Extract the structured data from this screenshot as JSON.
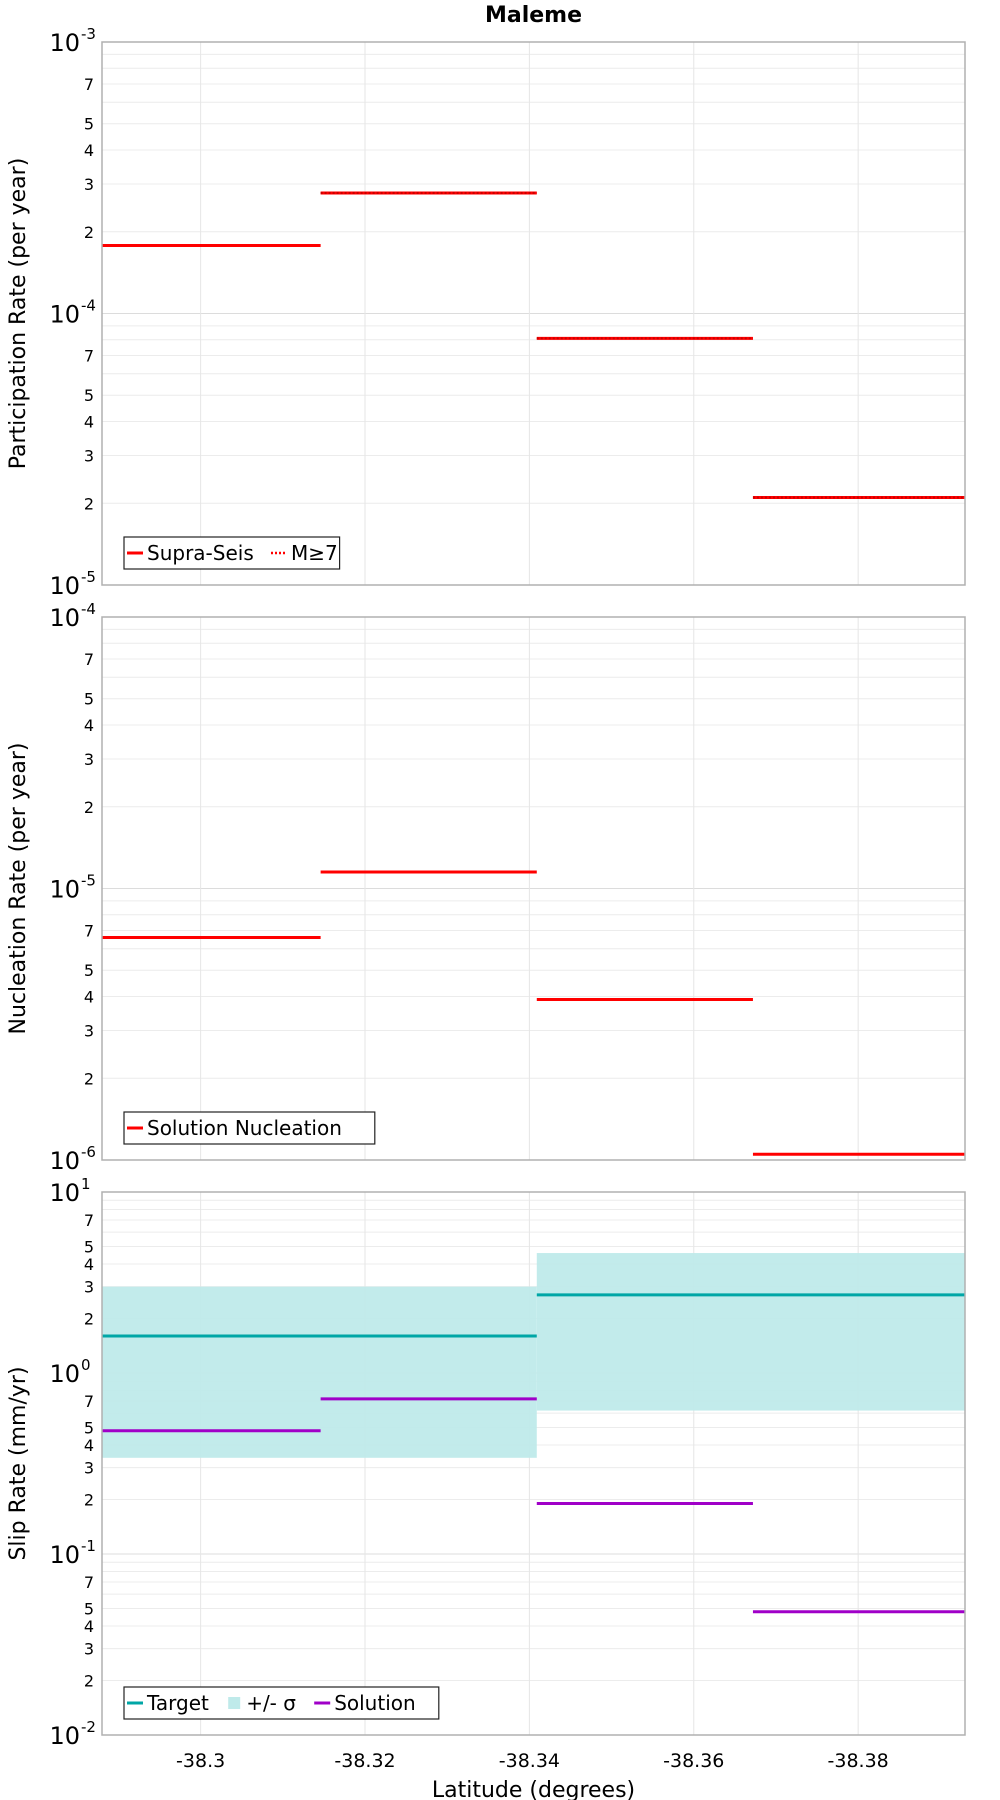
{
  "chart_data": [
    {
      "type": "line",
      "title": "Maleme",
      "xlabel": "",
      "ylabel": "Participation Rate (per year)",
      "x_scale": "linear",
      "x_reversed": true,
      "xlim": [
        -38.288,
        -38.393
      ],
      "y_scale": "log",
      "ylim": [
        1e-05,
        0.001
      ],
      "grid": true,
      "legend_position": "bottom-left",
      "legend": [
        {
          "label": "Supra-Seis",
          "style": "solid",
          "color": "#ff0000"
        },
        {
          "label": "M≥7",
          "style": "dotted",
          "color": "#ff0000"
        }
      ],
      "series": [
        {
          "name": "Supra-Seis",
          "color": "#ff0000",
          "style": "solid",
          "width": 3,
          "segments": [
            {
              "x": [
                -38.288,
                -38.3146
              ],
              "y": 0.000178
            },
            {
              "x": [
                -38.3146,
                -38.3409
              ],
              "y": 0.000278
            },
            {
              "x": [
                -38.3409,
                -38.3672
              ],
              "y": 8.1e-05
            },
            {
              "x": [
                -38.3672,
                -38.393
              ],
              "y": 2.1e-05
            }
          ]
        },
        {
          "name": "M≥7",
          "color": "#ff0000",
          "style": "dotted",
          "width": 2,
          "segments": [
            {
              "x": [
                -38.3146,
                -38.3409
              ],
              "y": 0.000278
            },
            {
              "x": [
                -38.3409,
                -38.3672
              ],
              "y": 8.1e-05
            },
            {
              "x": [
                -38.3672,
                -38.393
              ],
              "y": 2.1e-05
            }
          ]
        }
      ]
    },
    {
      "type": "line",
      "title": "",
      "xlabel": "",
      "ylabel": "Nucleation Rate (per year)",
      "x_scale": "linear",
      "x_reversed": true,
      "xlim": [
        -38.288,
        -38.393
      ],
      "y_scale": "log",
      "ylim": [
        1e-06,
        0.0001
      ],
      "grid": true,
      "legend_position": "bottom-left",
      "legend": [
        {
          "label": "Solution Nucleation",
          "style": "solid",
          "color": "#ff0000"
        }
      ],
      "series": [
        {
          "name": "Solution Nucleation",
          "color": "#ff0000",
          "style": "solid",
          "width": 3,
          "segments": [
            {
              "x": [
                -38.288,
                -38.3146
              ],
              "y": 6.6e-06
            },
            {
              "x": [
                -38.3146,
                -38.3409
              ],
              "y": 1.15e-05
            },
            {
              "x": [
                -38.3409,
                -38.3672
              ],
              "y": 3.9e-06
            },
            {
              "x": [
                -38.3672,
                -38.393
              ],
              "y": 1.05e-06
            }
          ]
        }
      ]
    },
    {
      "type": "line",
      "title": "",
      "xlabel": "Latitude (degrees)",
      "ylabel": "Slip Rate (mm/yr)",
      "x_scale": "linear",
      "x_reversed": true,
      "xlim": [
        -38.288,
        -38.393
      ],
      "xticks": [
        -38.3,
        -38.32,
        -38.34,
        -38.36,
        -38.38
      ],
      "y_scale": "log",
      "ylim": [
        0.01,
        10
      ],
      "grid": true,
      "legend_position": "bottom-left",
      "legend": [
        {
          "label": "Target",
          "style": "solid",
          "color": "#00a6a6"
        },
        {
          "label": "+/- σ",
          "style": "band",
          "color": "#bfeaea"
        },
        {
          "label": "Solution",
          "style": "solid",
          "color": "#a000c8"
        }
      ],
      "bands": [
        {
          "name": "+/- σ",
          "color": "#bfeaea",
          "segments": [
            {
              "x": [
                -38.288,
                -38.3409
              ],
              "low": 0.34,
              "high": 3.0
            },
            {
              "x": [
                -38.3409,
                -38.393
              ],
              "low": 0.62,
              "high": 4.6
            }
          ]
        }
      ],
      "series": [
        {
          "name": "Target",
          "color": "#00a6a6",
          "style": "solid",
          "width": 3,
          "segments": [
            {
              "x": [
                -38.288,
                -38.3409
              ],
              "y": 1.6
            },
            {
              "x": [
                -38.3409,
                -38.393
              ],
              "y": 2.7
            }
          ]
        },
        {
          "name": "Solution",
          "color": "#a000c8",
          "style": "solid",
          "width": 3,
          "segments": [
            {
              "x": [
                -38.288,
                -38.3146
              ],
              "y": 0.48
            },
            {
              "x": [
                -38.3146,
                -38.3409
              ],
              "y": 0.72
            },
            {
              "x": [
                -38.3409,
                -38.3672
              ],
              "y": 0.19
            },
            {
              "x": [
                -38.3672,
                -38.393
              ],
              "y": 0.048
            }
          ]
        }
      ]
    }
  ]
}
